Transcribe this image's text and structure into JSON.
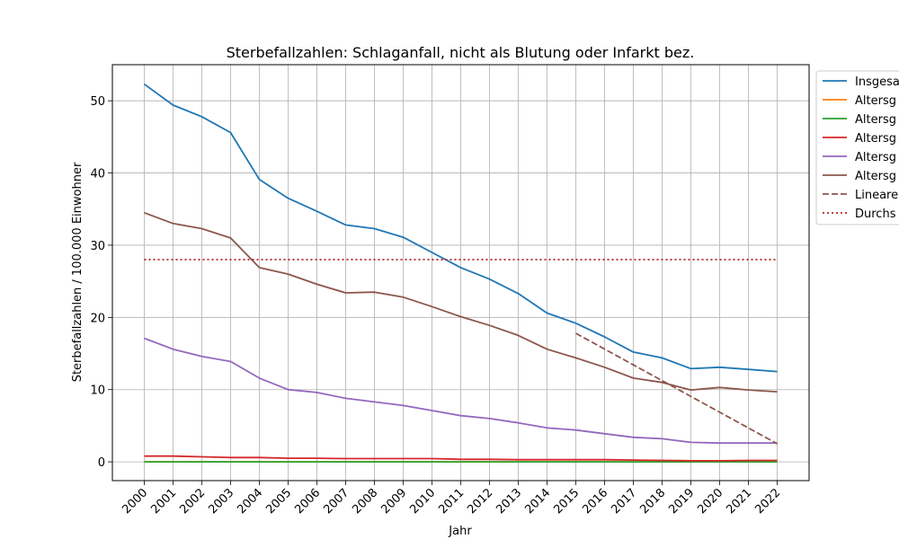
{
  "chart_data": {
    "type": "line",
    "title": "Sterbefallzahlen: Schlaganfall, nicht als Blutung oder Infarkt bez.",
    "xlabel": "Jahr",
    "ylabel": "Sterbefallzahlen / 100.000 Einwohner",
    "x": [
      "2000",
      "2001",
      "2002",
      "2003",
      "2004",
      "2005",
      "2006",
      "2007",
      "2008",
      "2009",
      "2010",
      "2011",
      "2012",
      "2013",
      "2014",
      "2015",
      "2016",
      "2017",
      "2018",
      "2019",
      "2020",
      "2021",
      "2022"
    ],
    "ylim": [
      -2.6,
      55
    ],
    "yticks": [
      0,
      10,
      20,
      30,
      40,
      50
    ],
    "grid": true,
    "legend_position": "right (cut off)",
    "series": [
      {
        "name": "Insgesa",
        "color": "#1f77b4",
        "style": "solid",
        "values": [
          52.3,
          49.4,
          47.8,
          45.6,
          39.1,
          36.5,
          34.7,
          32.8,
          32.3,
          31.1,
          29.0,
          26.9,
          25.3,
          23.3,
          20.6,
          19.2,
          17.3,
          15.2,
          14.4,
          12.9,
          13.1,
          12.8,
          12.5
        ]
      },
      {
        "name": "Altersg",
        "color": "#ff7f0e",
        "style": "solid",
        "values": [
          0.0,
          0.0,
          0.0,
          0.0,
          0.0,
          0.0,
          0.0,
          0.0,
          0.0,
          0.0,
          0.0,
          0.0,
          0.0,
          0.0,
          0.0,
          0.0,
          0.0,
          0.0,
          0.0,
          0.0,
          0.0,
          0.0,
          0.0
        ]
      },
      {
        "name": "Altersg",
        "color": "#2ca02c",
        "style": "solid",
        "values": [
          0.0,
          0.0,
          0.0,
          0.0,
          0.0,
          0.0,
          0.0,
          0.0,
          0.0,
          0.0,
          0.0,
          0.0,
          0.0,
          0.0,
          0.0,
          0.0,
          0.0,
          0.0,
          0.0,
          0.0,
          0.0,
          0.0,
          0.0
        ]
      },
      {
        "name": "Altersg",
        "color": "#d62728",
        "style": "solid",
        "values": [
          0.8,
          0.8,
          0.7,
          0.6,
          0.6,
          0.5,
          0.5,
          0.45,
          0.45,
          0.45,
          0.45,
          0.35,
          0.35,
          0.3,
          0.3,
          0.3,
          0.3,
          0.25,
          0.2,
          0.15,
          0.15,
          0.2,
          0.2
        ]
      },
      {
        "name": "Altersg",
        "color": "#9467bd",
        "style": "solid",
        "values": [
          17.1,
          15.6,
          14.6,
          13.9,
          11.6,
          10.0,
          9.6,
          8.8,
          8.3,
          7.8,
          7.1,
          6.4,
          6.0,
          5.4,
          4.7,
          4.4,
          3.9,
          3.4,
          3.2,
          2.7,
          2.6,
          2.6,
          2.6
        ]
      },
      {
        "name": "Altersg",
        "color": "#8c564b",
        "style": "solid",
        "values": [
          34.5,
          33.0,
          32.3,
          31.0,
          26.9,
          26.0,
          24.6,
          23.4,
          23.5,
          22.8,
          21.5,
          20.1,
          18.9,
          17.5,
          15.6,
          14.4,
          13.1,
          11.6,
          11.0,
          9.95,
          10.3,
          9.95,
          9.7
        ]
      },
      {
        "name": "Lineare",
        "color": "#8c564b",
        "style": "dashed",
        "x": [
          "2015",
          "2022"
        ],
        "values": [
          17.8,
          2.5
        ]
      },
      {
        "name": "Durchs",
        "color": "#b22222",
        "style": "dotted",
        "x": [
          "2000",
          "2022"
        ],
        "values": [
          28.0,
          28.0
        ]
      }
    ]
  }
}
